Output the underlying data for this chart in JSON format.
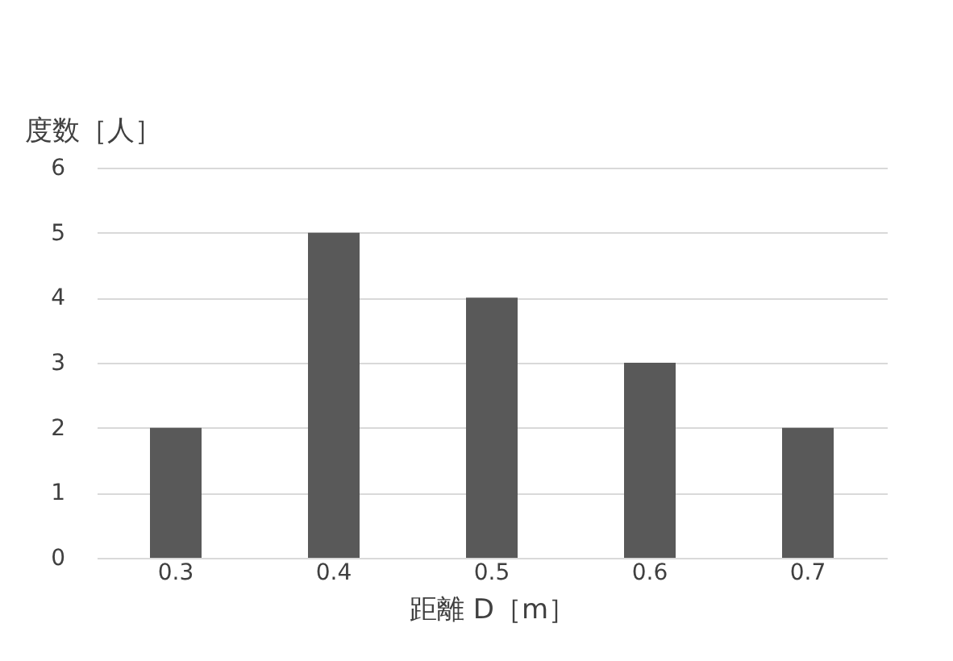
{
  "chart_data": {
    "type": "bar",
    "categories": [
      "0.3",
      "0.4",
      "0.5",
      "0.6",
      "0.7"
    ],
    "values": [
      2,
      5,
      4,
      3,
      2
    ],
    "color": "#595959",
    "ylabel": "度数［人］",
    "xlabel": "距離 D［m］",
    "ylim": [
      0,
      6
    ],
    "yticks": [
      0,
      1,
      2,
      3,
      4,
      5,
      6
    ],
    "grid": "y"
  }
}
